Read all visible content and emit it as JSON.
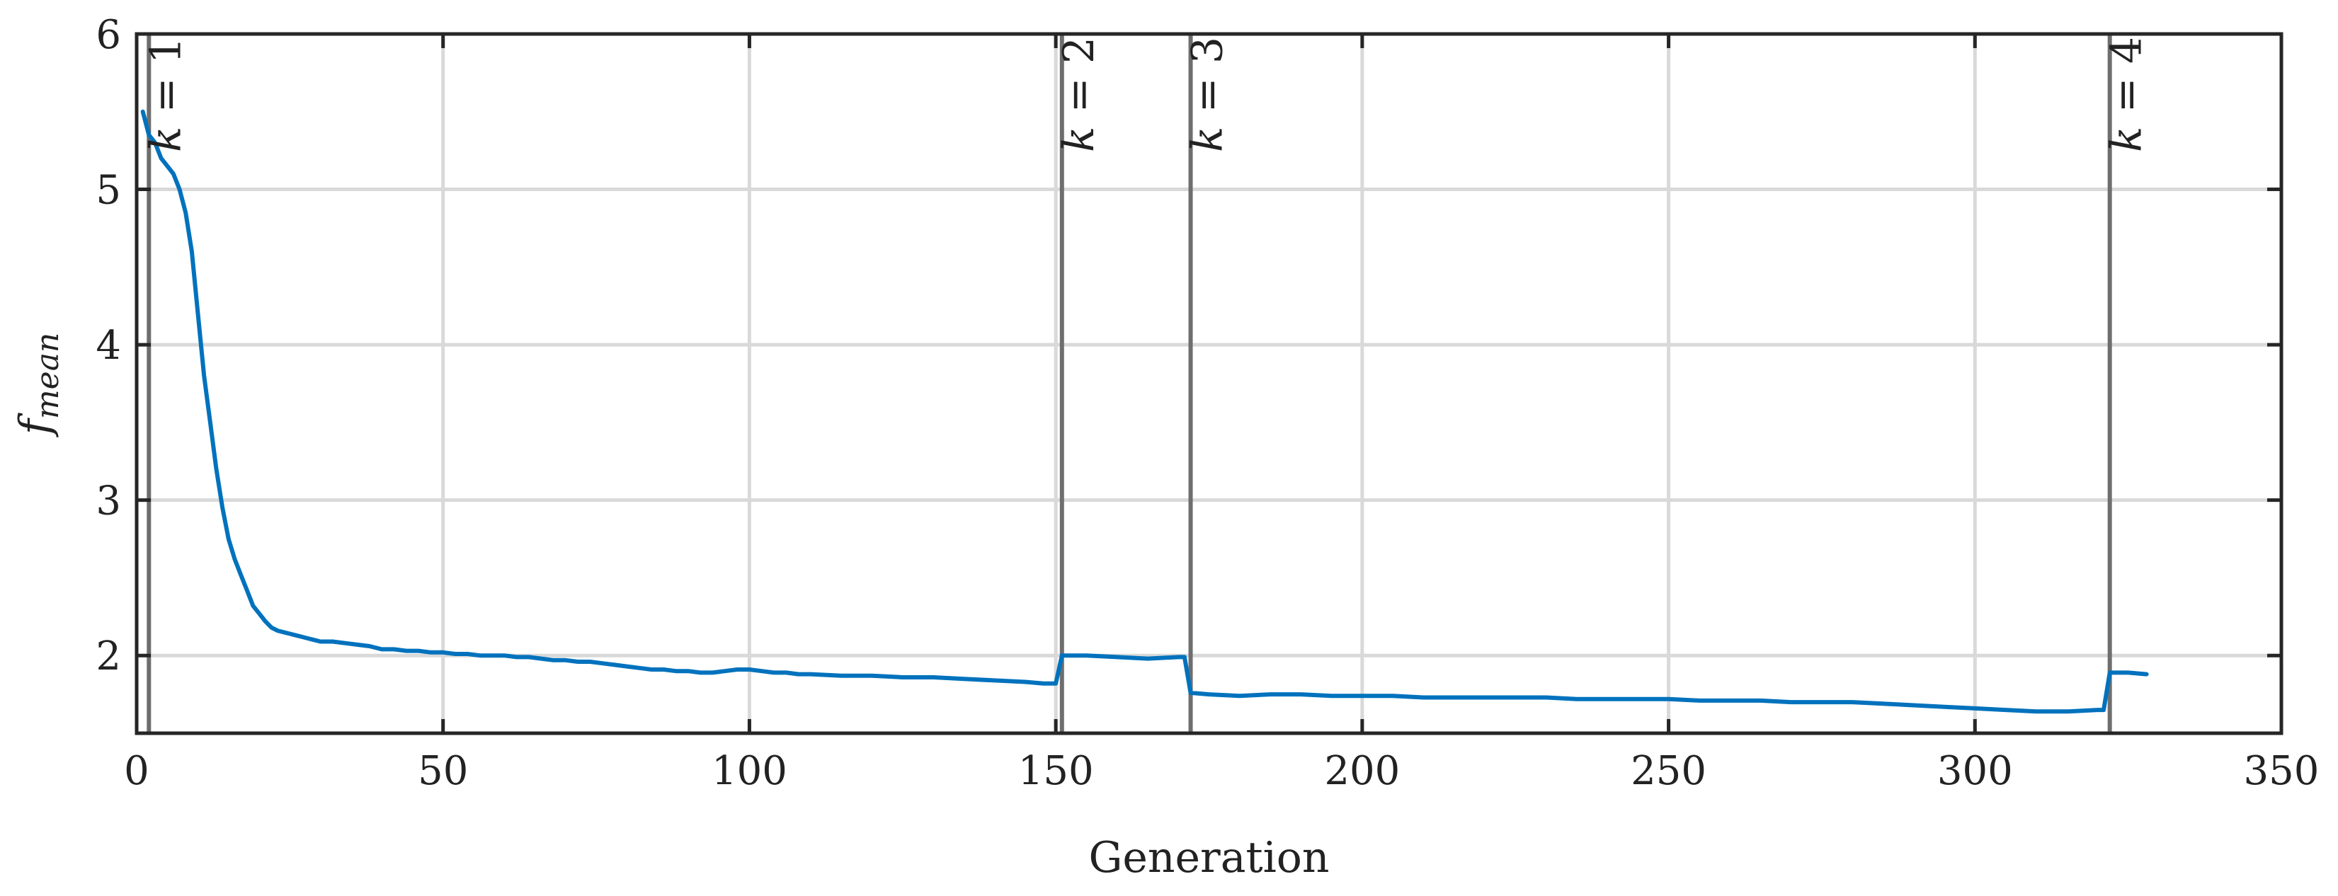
{
  "chart_data": {
    "type": "line",
    "title": "",
    "xlabel": "Generation",
    "ylabel": {
      "main": "f",
      "sub": "mean"
    },
    "xlim": [
      0,
      350
    ],
    "ylim": [
      1.5,
      6
    ],
    "xticks": [
      0,
      50,
      100,
      150,
      200,
      250,
      300,
      350
    ],
    "yticks": [
      2,
      3,
      4,
      5,
      6
    ],
    "grid": true,
    "line_color": "#0072BD",
    "markers": [
      {
        "x": 2,
        "label": "k = 1"
      },
      {
        "x": 151,
        "label": "k = 2"
      },
      {
        "x": 172,
        "label": "k = 3"
      },
      {
        "x": 322,
        "label": "k = 4"
      }
    ],
    "series": [
      {
        "x": [
          1,
          2,
          3,
          4,
          5,
          6,
          7,
          8,
          9,
          10,
          11,
          12,
          13,
          14,
          15,
          16,
          17,
          18,
          19,
          20,
          21,
          22,
          23,
          24,
          25,
          26,
          27,
          28,
          29,
          30,
          32,
          34,
          36,
          38,
          40,
          42,
          44,
          46,
          48,
          50,
          52,
          54,
          56,
          58,
          60,
          62,
          64,
          66,
          68,
          70,
          72,
          74,
          76,
          78,
          80,
          82,
          84,
          86,
          88,
          90,
          92,
          94,
          96,
          98,
          100,
          102,
          104,
          106,
          108,
          110,
          115,
          120,
          125,
          130,
          135,
          140,
          145,
          148,
          150,
          151,
          155,
          160,
          165,
          170,
          171,
          172,
          175,
          180,
          185,
          190,
          195,
          200,
          205,
          210,
          215,
          220,
          225,
          230,
          235,
          240,
          245,
          250,
          255,
          260,
          265,
          270,
          275,
          280,
          285,
          290,
          295,
          300,
          305,
          310,
          315,
          320,
          321,
          322,
          325,
          328
        ],
        "y": [
          5.5,
          5.35,
          5.3,
          5.2,
          5.15,
          5.1,
          5.0,
          4.85,
          4.6,
          4.2,
          3.8,
          3.5,
          3.2,
          2.95,
          2.75,
          2.62,
          2.52,
          2.42,
          2.32,
          2.27,
          2.22,
          2.18,
          2.16,
          2.15,
          2.14,
          2.13,
          2.12,
          2.11,
          2.1,
          2.09,
          2.09,
          2.08,
          2.07,
          2.06,
          2.04,
          2.04,
          2.03,
          2.03,
          2.02,
          2.02,
          2.01,
          2.01,
          2.0,
          2.0,
          2.0,
          1.99,
          1.99,
          1.98,
          1.97,
          1.97,
          1.96,
          1.96,
          1.95,
          1.94,
          1.93,
          1.92,
          1.91,
          1.91,
          1.9,
          1.9,
          1.89,
          1.89,
          1.9,
          1.91,
          1.91,
          1.9,
          1.89,
          1.89,
          1.88,
          1.88,
          1.87,
          1.87,
          1.86,
          1.86,
          1.85,
          1.84,
          1.83,
          1.82,
          1.82,
          2.0,
          2.0,
          1.99,
          1.98,
          1.99,
          1.99,
          1.76,
          1.75,
          1.74,
          1.75,
          1.75,
          1.74,
          1.74,
          1.74,
          1.73,
          1.73,
          1.73,
          1.73,
          1.73,
          1.72,
          1.72,
          1.72,
          1.72,
          1.71,
          1.71,
          1.71,
          1.7,
          1.7,
          1.7,
          1.69,
          1.68,
          1.67,
          1.66,
          1.65,
          1.64,
          1.64,
          1.65,
          1.65,
          1.89,
          1.89,
          1.88
        ]
      }
    ]
  }
}
